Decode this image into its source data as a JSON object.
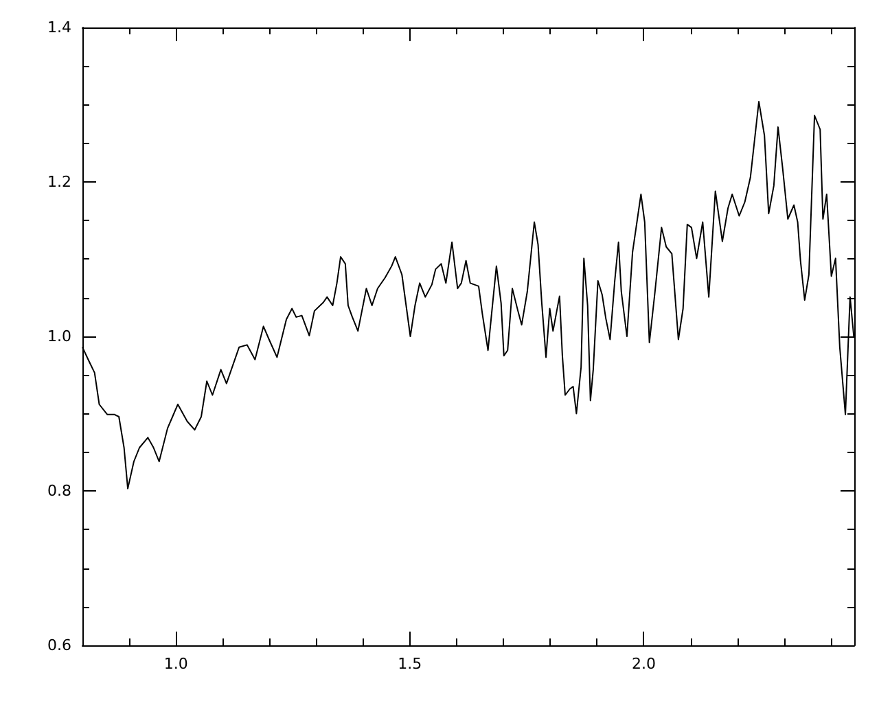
{
  "chart_data": {
    "type": "line",
    "color": "#000000",
    "marker": "none",
    "line_style": "solid",
    "xlim": [
      0.8,
      2.45
    ],
    "ylim": [
      0.6,
      1.4
    ],
    "xticks": [
      {
        "value": 0.9,
        "label": null
      },
      {
        "value": 1.0,
        "label": "1.0"
      },
      {
        "value": 1.1,
        "label": null
      },
      {
        "value": 1.2,
        "label": null
      },
      {
        "value": 1.3,
        "label": null
      },
      {
        "value": 1.4,
        "label": null
      },
      {
        "value": 1.5,
        "label": "1.5"
      },
      {
        "value": 1.6,
        "label": null
      },
      {
        "value": 1.7,
        "label": null
      },
      {
        "value": 1.8,
        "label": null
      },
      {
        "value": 1.9,
        "label": null
      },
      {
        "value": 2.0,
        "label": "2.0"
      },
      {
        "value": 2.1,
        "label": null
      },
      {
        "value": 2.2,
        "label": null
      },
      {
        "value": 2.3,
        "label": null
      },
      {
        "value": 2.4,
        "label": null
      }
    ],
    "yticks": [
      {
        "value": 0.6,
        "label": "0.6"
      },
      {
        "value": 0.65,
        "label": null
      },
      {
        "value": 0.7,
        "label": null
      },
      {
        "value": 0.75,
        "label": null
      },
      {
        "value": 0.8,
        "label": "0.8"
      },
      {
        "value": 0.85,
        "label": null
      },
      {
        "value": 0.9,
        "label": null
      },
      {
        "value": 0.95,
        "label": null
      },
      {
        "value": 1.0,
        "label": "1.0"
      },
      {
        "value": 1.05,
        "label": null
      },
      {
        "value": 1.1,
        "label": null
      },
      {
        "value": 1.15,
        "label": null
      },
      {
        "value": 1.2,
        "label": "1.2"
      },
      {
        "value": 1.25,
        "label": null
      },
      {
        "value": 1.3,
        "label": null
      },
      {
        "value": 1.35,
        "label": null
      },
      {
        "value": 1.4,
        "label": "1.4"
      }
    ],
    "x": [
      0.8,
      0.814,
      0.826,
      0.836,
      0.853,
      0.868,
      0.878,
      0.889,
      0.897,
      0.91,
      0.922,
      0.94,
      0.952,
      0.964,
      0.982,
      1.004,
      1.024,
      1.04,
      1.054,
      1.066,
      1.078,
      1.096,
      1.108,
      1.135,
      1.152,
      1.169,
      1.187,
      1.199,
      1.216,
      1.236,
      1.248,
      1.257,
      1.269,
      1.285,
      1.296,
      1.315,
      1.323,
      1.335,
      1.344,
      1.352,
      1.362,
      1.368,
      1.377,
      1.389,
      1.407,
      1.419,
      1.431,
      1.447,
      1.461,
      1.469,
      1.483,
      1.492,
      1.501,
      1.511,
      1.521,
      1.533,
      1.547,
      1.555,
      1.567,
      1.577,
      1.59,
      1.602,
      1.61,
      1.62,
      1.629,
      1.647,
      1.655,
      1.667,
      1.677,
      1.685,
      1.695,
      1.701,
      1.709,
      1.719,
      1.731,
      1.739,
      1.751,
      1.766,
      1.774,
      1.782,
      1.791,
      1.799,
      1.806,
      1.814,
      1.82,
      1.826,
      1.832,
      1.842,
      1.849,
      1.856,
      1.866,
      1.872,
      1.88,
      1.886,
      1.892,
      1.902,
      1.911,
      1.919,
      1.928,
      1.938,
      1.946,
      1.952,
      1.964,
      1.976,
      1.994,
      2.002,
      2.012,
      2.024,
      2.038,
      2.048,
      2.06,
      2.074,
      2.084,
      2.093,
      2.102,
      2.113,
      2.126,
      2.139,
      2.153,
      2.168,
      2.18,
      2.189,
      2.204,
      2.216,
      2.228,
      2.246,
      2.258,
      2.267,
      2.278,
      2.287,
      2.297,
      2.308,
      2.321,
      2.329,
      2.335,
      2.344,
      2.353,
      2.365,
      2.377,
      2.383,
      2.391,
      2.401,
      2.41,
      2.419,
      2.431,
      2.441,
      2.449
    ],
    "values": [
      0.986,
      0.968,
      0.953,
      0.912,
      0.899,
      0.899,
      0.896,
      0.856,
      0.803,
      0.838,
      0.856,
      0.869,
      0.856,
      0.838,
      0.881,
      0.912,
      0.89,
      0.879,
      0.896,
      0.942,
      0.924,
      0.957,
      0.939,
      0.986,
      0.989,
      0.97,
      1.013,
      0.996,
      0.973,
      1.022,
      1.036,
      1.025,
      1.027,
      1.001,
      1.033,
      1.044,
      1.051,
      1.04,
      1.069,
      1.103,
      1.094,
      1.04,
      1.025,
      1.007,
      1.062,
      1.04,
      1.062,
      1.076,
      1.091,
      1.103,
      1.08,
      1.04,
      1.0,
      1.04,
      1.069,
      1.051,
      1.067,
      1.087,
      1.094,
      1.069,
      1.122,
      1.062,
      1.069,
      1.098,
      1.069,
      1.065,
      1.029,
      0.982,
      1.043,
      1.091,
      1.043,
      0.975,
      0.982,
      1.062,
      1.033,
      1.015,
      1.058,
      1.148,
      1.119,
      1.043,
      0.973,
      1.036,
      1.007,
      1.033,
      1.052,
      0.975,
      0.924,
      0.932,
      0.935,
      0.9,
      0.96,
      1.101,
      1.04,
      0.917,
      0.957,
      1.072,
      1.054,
      1.023,
      0.996,
      1.072,
      1.122,
      1.058,
      1.0,
      1.109,
      1.184,
      1.148,
      0.992,
      1.058,
      1.141,
      1.116,
      1.107,
      0.996,
      1.036,
      1.145,
      1.141,
      1.101,
      1.148,
      1.051,
      1.188,
      1.123,
      1.166,
      1.184,
      1.156,
      1.174,
      1.206,
      1.304,
      1.26,
      1.159,
      1.195,
      1.271,
      1.217,
      1.152,
      1.17,
      1.148,
      1.098,
      1.047,
      1.08,
      1.286,
      1.268,
      1.152,
      1.184,
      1.078,
      1.101,
      0.986,
      0.899,
      1.051,
      1.0
    ]
  }
}
